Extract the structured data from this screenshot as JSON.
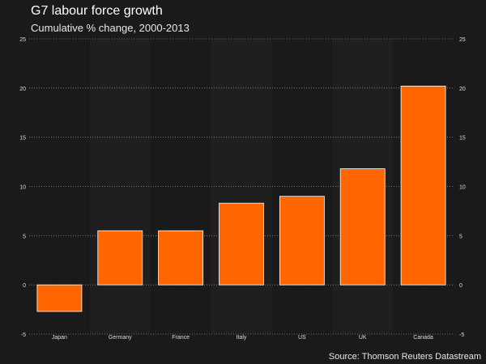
{
  "title": "G7 labour force growth",
  "subtitle": "Cumulative % change, 2000-2013",
  "source": "Source: Thomson Reuters Datastream",
  "colors": {
    "bar": "#ff6600",
    "bar_outline": "#ffffff",
    "background": "#1a1a1a",
    "band": "#1f1f1f",
    "grid": "#8a8a8a",
    "text": "#dddddd"
  },
  "chart_data": {
    "type": "bar",
    "title": "G7 labour force growth",
    "subtitle": "Cumulative % change, 2000-2013",
    "categories": [
      "Japan",
      "Germany",
      "France",
      "Italy",
      "US",
      "UK",
      "Canada"
    ],
    "values": [
      -2.7,
      5.5,
      5.5,
      8.3,
      9.0,
      11.8,
      20.2
    ],
    "ylim": [
      -5,
      25
    ],
    "yticks": [
      "-5",
      "0",
      "5",
      "10",
      "15",
      "20",
      "25"
    ],
    "grid": true,
    "y_axis_sides": "left-and-right"
  }
}
